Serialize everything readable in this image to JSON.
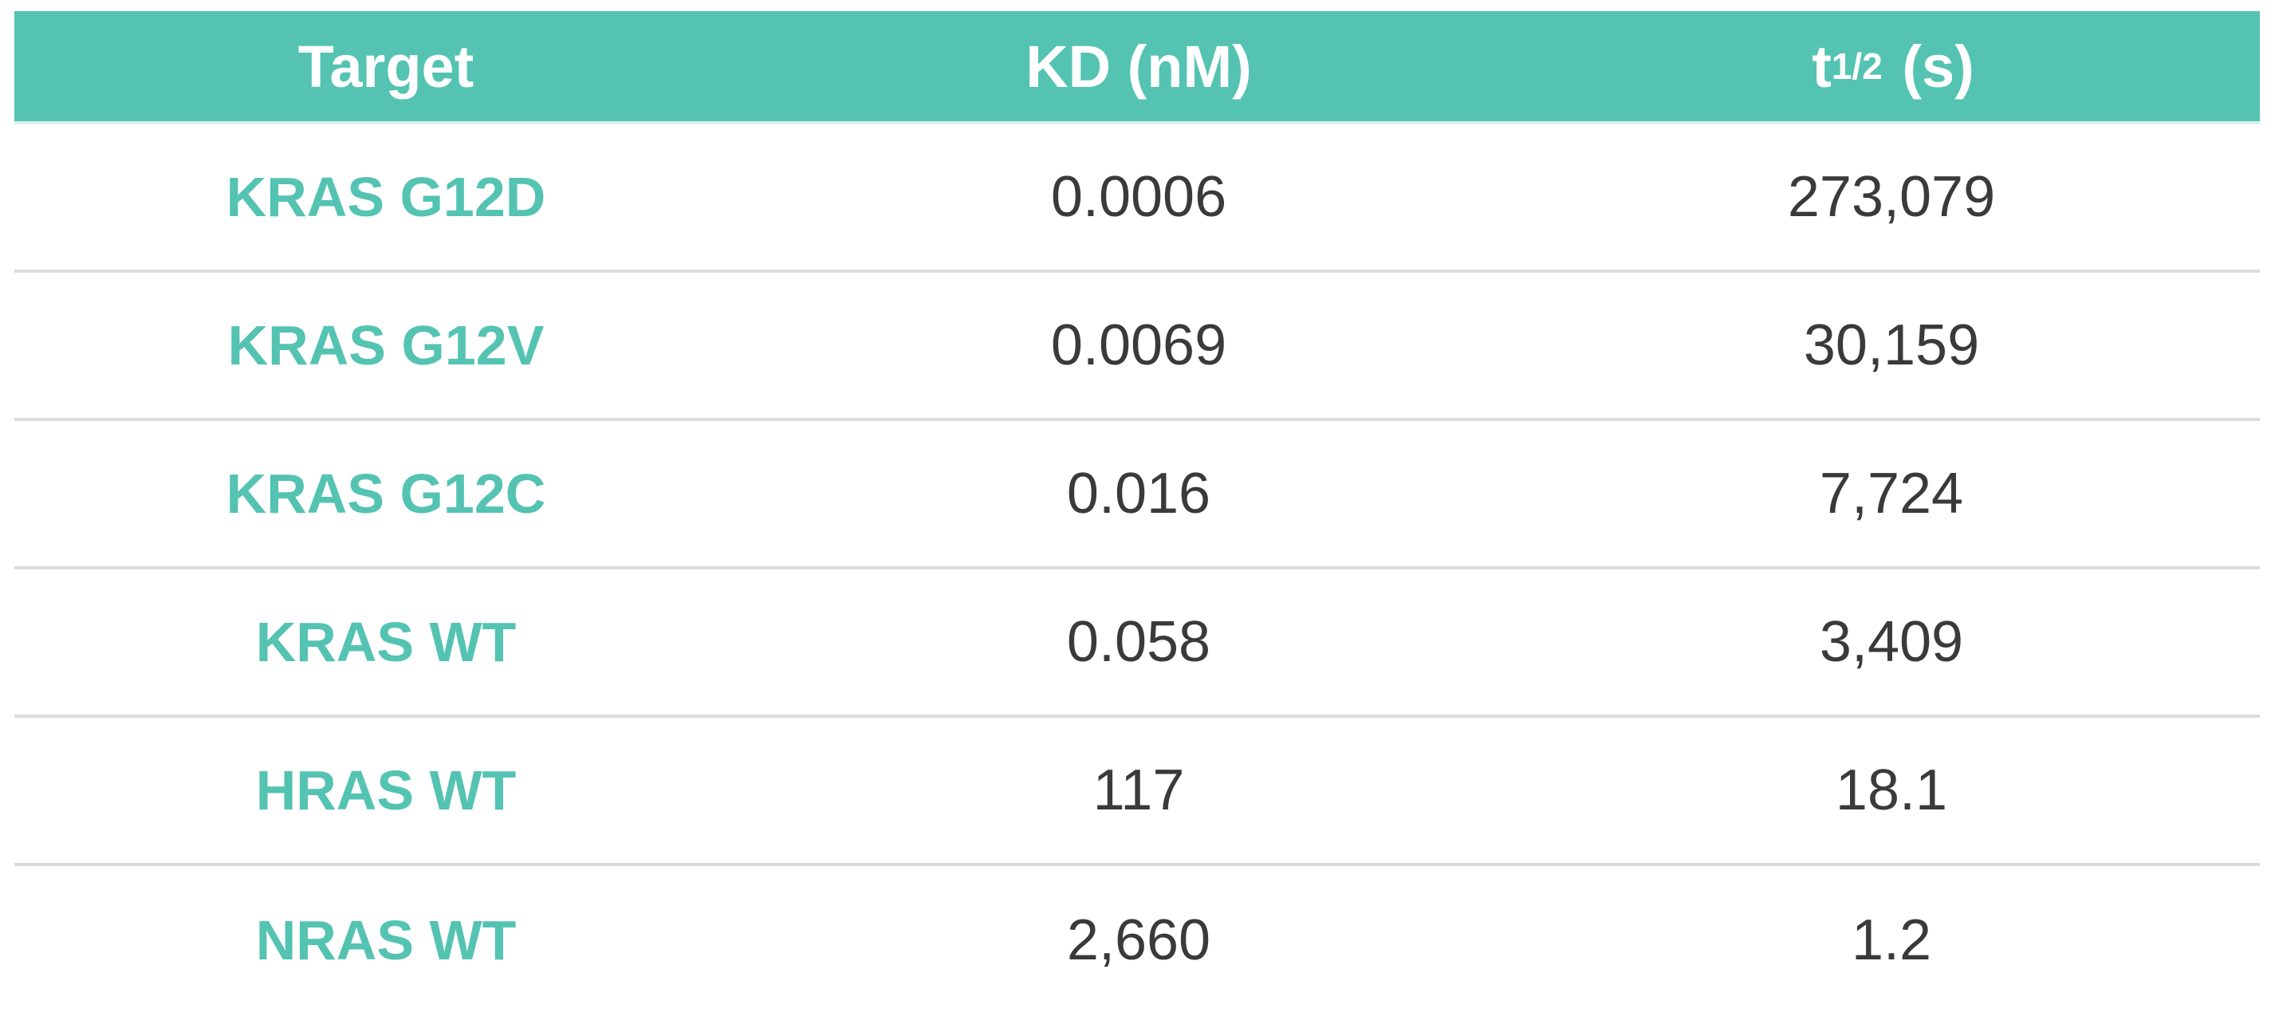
{
  "table": {
    "headers": {
      "target": "Target",
      "kd": "KD (nM)",
      "half_life_main": "t",
      "half_life_sub": "1/2",
      "half_life_unit": "(s)"
    },
    "rows": [
      {
        "target": "KRAS G12D",
        "kd": "0.0006",
        "half_life": "273,079"
      },
      {
        "target": "KRAS G12V",
        "kd": "0.0069",
        "half_life": "30,159"
      },
      {
        "target": "KRAS G12C",
        "kd": "0.016",
        "half_life": "7,724"
      },
      {
        "target": "KRAS WT",
        "kd": "0.058",
        "half_life": "3,409"
      },
      {
        "target": "HRAS WT",
        "kd": "117",
        "half_life": "18.1"
      },
      {
        "target": "NRAS WT",
        "kd": "2,660",
        "half_life": "1.2"
      }
    ],
    "colors": {
      "header_bg": "#54c3b2",
      "header_text": "#ffffff",
      "target_text": "#54c3b2",
      "value_text": "#3a3a3a",
      "divider": "#dcdcdc"
    }
  }
}
